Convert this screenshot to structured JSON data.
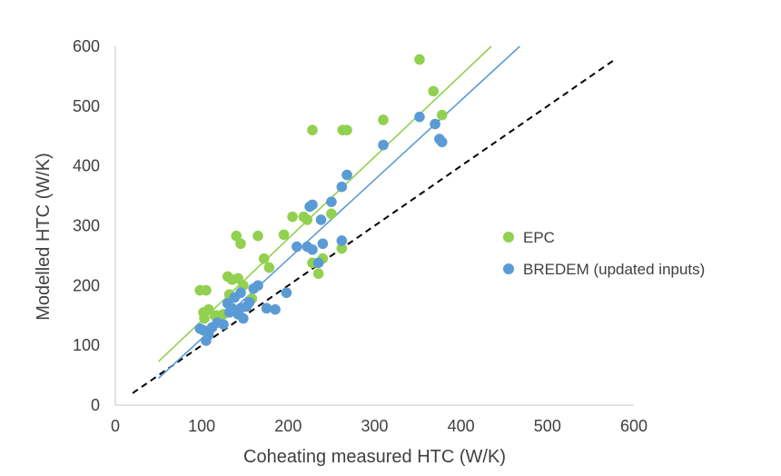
{
  "chart_data": {
    "type": "scatter",
    "title": "",
    "xlabel": "Coheating measured HTC (W/K)",
    "ylabel": "Modelled HTC (W/K)",
    "xlim": [
      0,
      600
    ],
    "ylim": [
      0,
      600
    ],
    "xticks": [
      0,
      100,
      200,
      300,
      400,
      500,
      600
    ],
    "yticks": [
      0,
      100,
      200,
      300,
      400,
      500,
      600
    ],
    "grid": false,
    "legend_position": "right",
    "series": [
      {
        "name": "EPC",
        "color": "#92d050",
        "trendline": {
          "x": [
            50,
            435
          ],
          "y": [
            73,
            600
          ]
        },
        "points": [
          [
            98,
            192
          ],
          [
            105,
            192
          ],
          [
            102,
            155
          ],
          [
            108,
            160
          ],
          [
            103,
            145
          ],
          [
            118,
            150
          ],
          [
            125,
            152
          ],
          [
            130,
            215
          ],
          [
            135,
            210
          ],
          [
            142,
            212
          ],
          [
            148,
            200
          ],
          [
            140,
            283
          ],
          [
            145,
            270
          ],
          [
            165,
            283
          ],
          [
            172,
            245
          ],
          [
            178,
            230
          ],
          [
            195,
            285
          ],
          [
            205,
            315
          ],
          [
            218,
            315
          ],
          [
            222,
            310
          ],
          [
            228,
            460
          ],
          [
            263,
            460
          ],
          [
            268,
            460
          ],
          [
            240,
            245
          ],
          [
            235,
            220
          ],
          [
            228,
            238
          ],
          [
            250,
            320
          ],
          [
            262,
            262
          ],
          [
            310,
            477
          ],
          [
            352,
            578
          ],
          [
            368,
            525
          ],
          [
            378,
            485
          ],
          [
            158,
            178
          ],
          [
            132,
            185
          ],
          [
            115,
            150
          ]
        ]
      },
      {
        "name": "BREDEM (updated inputs)",
        "color": "#5b9bd5",
        "trendline": {
          "x": [
            50,
            468
          ],
          "y": [
            45,
            600
          ]
        },
        "points": [
          [
            98,
            128
          ],
          [
            102,
            125
          ],
          [
            105,
            108
          ],
          [
            108,
            118
          ],
          [
            118,
            138
          ],
          [
            125,
            135
          ],
          [
            130,
            170
          ],
          [
            135,
            162
          ],
          [
            138,
            180
          ],
          [
            142,
            152
          ],
          [
            145,
            188
          ],
          [
            148,
            145
          ],
          [
            152,
            165
          ],
          [
            160,
            195
          ],
          [
            165,
            200
          ],
          [
            175,
            162
          ],
          [
            185,
            160
          ],
          [
            198,
            188
          ],
          [
            210,
            265
          ],
          [
            222,
            265
          ],
          [
            228,
            260
          ],
          [
            225,
            332
          ],
          [
            228,
            335
          ],
          [
            238,
            310
          ],
          [
            240,
            270
          ],
          [
            235,
            238
          ],
          [
            250,
            340
          ],
          [
            262,
            365
          ],
          [
            268,
            385
          ],
          [
            262,
            275
          ],
          [
            310,
            435
          ],
          [
            352,
            482
          ],
          [
            370,
            470
          ],
          [
            375,
            445
          ],
          [
            378,
            440
          ],
          [
            132,
            155
          ],
          [
            112,
            130
          ],
          [
            155,
            172
          ],
          [
            145,
            162
          ]
        ]
      }
    ],
    "reference_line": {
      "style": "dashed",
      "color": "#000000",
      "x": [
        20,
        578
      ],
      "y": [
        20,
        578
      ]
    }
  }
}
